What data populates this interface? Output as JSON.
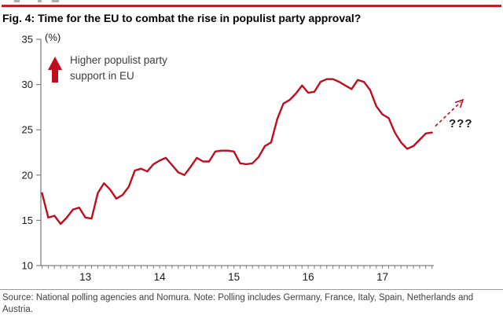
{
  "page": {
    "title": "Fig. 4: Time for the EU to combat the rise in populist party approval?"
  },
  "annotation": {
    "line1": "Higher populist party",
    "line2": "support in EU",
    "projection_label": "???"
  },
  "footer": {
    "source_note": "Source: National polling agencies and Nomura. Note: Polling includes Germany, France, Italy, Spain, Netherlands and Austria."
  },
  "chart_data": {
    "type": "line",
    "title": "Fig. 4: Time for the EU to combat the rise in populist party approval?",
    "unit_label": "(%)",
    "xlabel": "",
    "ylabel": "(%)",
    "ylim": [
      10,
      35
    ],
    "y_ticks": [
      10,
      15,
      20,
      25,
      30,
      35
    ],
    "grid": false,
    "legend_position": "none",
    "line_color": "#c00d1d",
    "axis_color": "#808080",
    "x_tick_labels": [
      "13",
      "14",
      "15",
      "16",
      "17"
    ],
    "x_year_ticks": [
      {
        "label": "13",
        "month_index": 7
      },
      {
        "label": "14",
        "month_index": 19
      },
      {
        "label": "15",
        "month_index": 31
      },
      {
        "label": "16",
        "month_index": 43
      },
      {
        "label": "17",
        "month_index": 55
      }
    ],
    "x": [
      "Jun-12",
      "Jul-12",
      "Aug-12",
      "Sep-12",
      "Oct-12",
      "Nov-12",
      "Dec-12",
      "Jan-13",
      "Feb-13",
      "Mar-13",
      "Apr-13",
      "May-13",
      "Jun-13",
      "Jul-13",
      "Aug-13",
      "Sep-13",
      "Oct-13",
      "Nov-13",
      "Dec-13",
      "Jan-14",
      "Feb-14",
      "Mar-14",
      "Apr-14",
      "May-14",
      "Jun-14",
      "Jul-14",
      "Aug-14",
      "Sep-14",
      "Oct-14",
      "Nov-14",
      "Dec-14",
      "Jan-15",
      "Feb-15",
      "Mar-15",
      "Apr-15",
      "May-15",
      "Jun-15",
      "Jul-15",
      "Aug-15",
      "Sep-15",
      "Oct-15",
      "Nov-15",
      "Dec-15",
      "Jan-16",
      "Feb-16",
      "Mar-16",
      "Apr-16",
      "May-16",
      "Jun-16",
      "Jul-16",
      "Aug-16",
      "Sep-16",
      "Oct-16",
      "Nov-16",
      "Dec-16",
      "Jan-17",
      "Feb-17",
      "Mar-17",
      "Apr-17",
      "May-17",
      "Jun-17",
      "Jul-17",
      "Aug-17",
      "Sep-17"
    ],
    "series": [
      {
        "name": "Populist party support in EU (%)",
        "values": [
          18.0,
          15.3,
          15.5,
          14.6,
          15.3,
          16.2,
          16.4,
          15.3,
          15.2,
          18.0,
          19.1,
          18.4,
          17.4,
          17.8,
          18.7,
          20.5,
          20.7,
          20.4,
          21.2,
          21.6,
          21.9,
          21.1,
          20.3,
          20.0,
          20.9,
          21.9,
          21.5,
          21.5,
          22.6,
          22.7,
          22.7,
          22.6,
          21.3,
          21.2,
          21.3,
          22.0,
          23.2,
          23.6,
          26.2,
          27.9,
          28.3,
          29.0,
          29.9,
          29.1,
          29.2,
          30.3,
          30.6,
          30.6,
          30.3,
          29.9,
          29.5,
          30.5,
          30.3,
          29.4,
          27.6,
          26.7,
          26.3,
          24.7,
          23.6,
          22.9,
          23.2,
          23.9,
          24.6,
          24.7
        ]
      }
    ],
    "annotations": {
      "up_arrow_text": "Higher populist party support in EU",
      "projection": {
        "style": "dashed-arrow",
        "direction": "up-right",
        "label": "???"
      }
    }
  }
}
